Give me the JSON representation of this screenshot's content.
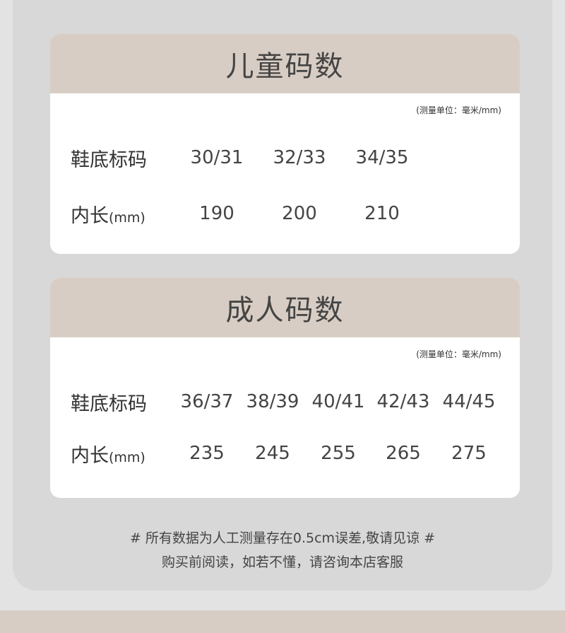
{
  "kids": {
    "title": "儿童码数",
    "unit": "(测量单位：毫米/mm)",
    "size_label": "鞋底标码",
    "length_label": "内长",
    "length_unit": "(mm)",
    "sizes": [
      "30/31",
      "32/33",
      "34/35"
    ],
    "lengths": [
      "190",
      "200",
      "210"
    ]
  },
  "adult": {
    "title": "成人码数",
    "unit": "(测量单位：毫米/mm)",
    "size_label": "鞋底标码",
    "length_label": "内长",
    "length_unit": "(mm)",
    "sizes": [
      "36/37",
      "38/39",
      "40/41",
      "42/43",
      "44/45"
    ],
    "lengths": [
      "235",
      "245",
      "255",
      "265",
      "275"
    ]
  },
  "notes": {
    "line1": "# 所有数据为人工测量存在0.5cm误差,敬请见谅 #",
    "line2": "购买前阅读，如若不懂，请咨询本店客服"
  },
  "colors": {
    "header": "#d8cdc4",
    "panel": "#d8d8d8"
  }
}
